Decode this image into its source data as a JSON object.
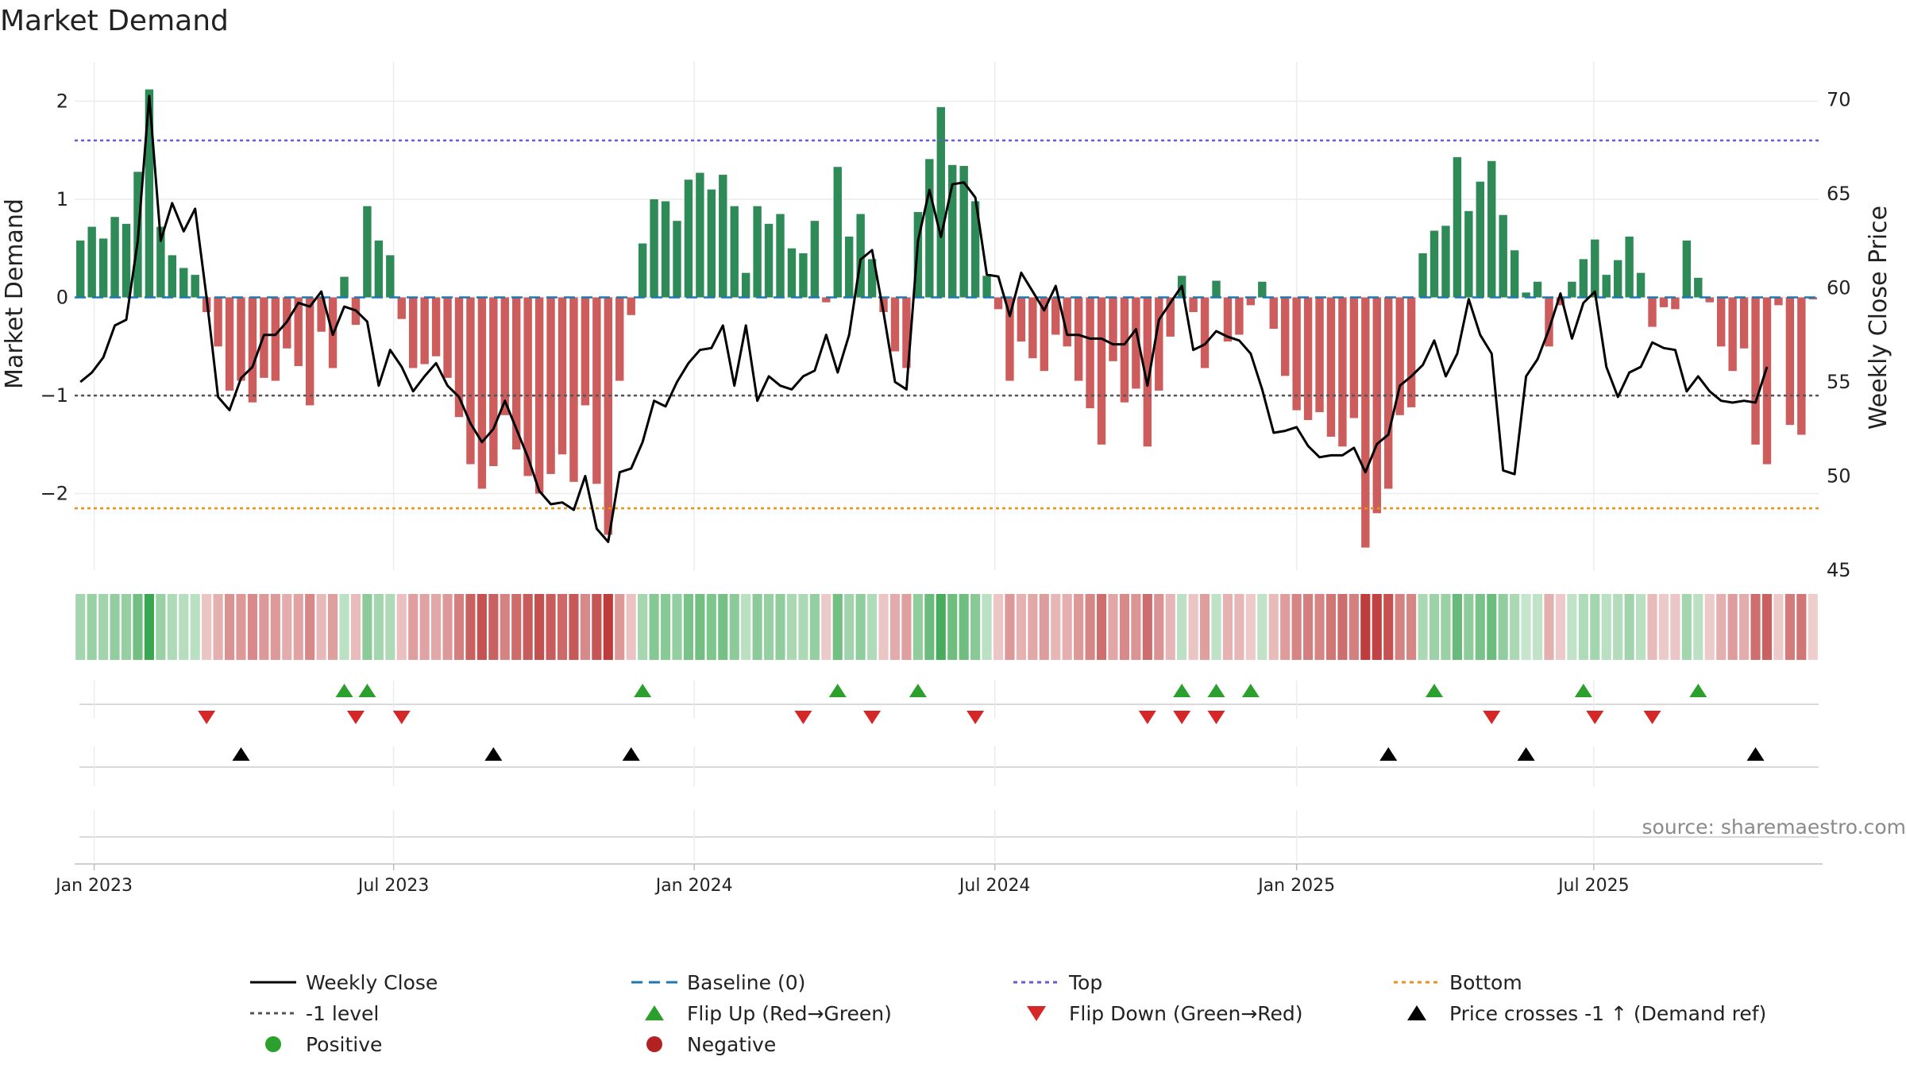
{
  "chart_data": {
    "type": "bar+line",
    "title": "Market Demand",
    "ylabel_left": "Market Demand",
    "ylabel_right": "Weekly Close Price",
    "source": "source: sharemaestro.com",
    "left_ylim": [
      -2.78,
      2.4
    ],
    "left_ticks": [
      2,
      1,
      0,
      -1,
      -2
    ],
    "left_tick_labels": [
      "2",
      "1",
      "0",
      "−1",
      "−2"
    ],
    "right_ylim": [
      45,
      72
    ],
    "right_ticks": [
      45,
      50,
      55,
      60,
      65,
      70
    ],
    "right_tick_labels": [
      "45",
      "50",
      "55",
      "60",
      "65",
      "70"
    ],
    "x_ticks": [
      "Jan 2023",
      "Jul 2023",
      "Jan 2024",
      "Jul 2024",
      "Jan 2025",
      "Jul 2025"
    ],
    "reference_lines": {
      "top": 1.6,
      "bottom": -2.15,
      "minus_one": -1,
      "baseline": 0
    },
    "colors": {
      "positive": "#2e8b57",
      "negative": "#cd5c5c",
      "close": "#000000",
      "top": "#6a5acd",
      "bottom": "#e8901e",
      "minus_one": "#555555",
      "baseline": "#1f77b4",
      "flip_up": "#2ca02c",
      "flip_down": "#d62728",
      "marker": "#000000"
    },
    "demand_values": [
      0.58,
      0.72,
      0.6,
      0.82,
      0.75,
      1.28,
      2.12,
      0.72,
      0.43,
      0.3,
      0.23,
      -0.15,
      -0.5,
      -0.95,
      -0.85,
      -1.07,
      -0.82,
      -0.85,
      -0.52,
      -0.7,
      -1.1,
      -0.35,
      -0.72,
      0.21,
      -0.28,
      0.93,
      0.58,
      0.43,
      -0.22,
      -0.72,
      -0.68,
      -0.6,
      -0.82,
      -1.22,
      -1.7,
      -1.95,
      -1.72,
      -1.2,
      -1.55,
      -1.82,
      -2.0,
      -1.8,
      -1.6,
      -1.88,
      -1.1,
      -1.9,
      -2.42,
      -0.85,
      -0.18,
      0.55,
      1.0,
      0.98,
      0.78,
      1.2,
      1.27,
      1.1,
      1.25,
      0.93,
      0.25,
      0.93,
      0.75,
      0.85,
      0.5,
      0.45,
      0.78,
      -0.05,
      1.33,
      0.62,
      0.85,
      0.39,
      -0.15,
      -0.55,
      -0.72,
      0.87,
      1.41,
      1.94,
      1.35,
      1.34,
      0.98,
      0.22,
      -0.12,
      -0.85,
      -0.45,
      -0.62,
      -0.75,
      -0.38,
      -0.5,
      -0.85,
      -1.13,
      -1.5,
      -0.65,
      -1.07,
      -0.93,
      -1.52,
      -0.95,
      -0.4,
      0.22,
      -0.15,
      -0.72,
      0.17,
      -0.45,
      -0.38,
      -0.08,
      0.16,
      -0.32,
      -0.8,
      -1.15,
      -1.25,
      -1.17,
      -1.42,
      -1.52,
      -1.23,
      -2.55,
      -2.2,
      -1.95,
      -1.2,
      -1.12,
      0.45,
      0.68,
      0.73,
      1.43,
      0.88,
      1.18,
      1.39,
      0.84,
      0.48,
      0.05,
      0.16,
      -0.5,
      -0.08,
      0.16,
      0.39,
      0.59,
      0.23,
      0.38,
      0.62,
      0.25,
      -0.3,
      -0.1,
      -0.12,
      0.58,
      0.2,
      -0.05,
      -0.5,
      -0.75,
      -0.52,
      -1.5,
      -1.7,
      -0.08,
      -1.3,
      -1.4,
      -0.02
    ],
    "close_values": [
      55.0,
      55.5,
      56.3,
      58.0,
      58.3,
      62.5,
      70.2,
      62.5,
      64.5,
      63.0,
      64.2,
      59.5,
      54.2,
      53.5,
      55.2,
      55.8,
      57.5,
      57.5,
      58.2,
      59.2,
      59.0,
      59.8,
      57.5,
      59.0,
      58.8,
      58.2,
      54.8,
      56.7,
      55.8,
      54.5,
      55.3,
      56.0,
      54.8,
      54.2,
      52.8,
      51.8,
      52.5,
      54.0,
      52.5,
      51.0,
      49.2,
      48.5,
      48.6,
      48.2,
      50.0,
      47.2,
      46.5,
      50.2,
      50.4,
      51.8,
      54.0,
      53.7,
      55.0,
      56.0,
      56.7,
      56.8,
      58.0,
      54.8,
      58.0,
      54.0,
      55.3,
      54.8,
      54.6,
      55.3,
      55.6,
      57.5,
      55.5,
      57.5,
      61.5,
      62.0,
      58.7,
      55.0,
      54.6,
      62.5,
      65.2,
      62.7,
      65.5,
      65.6,
      64.8,
      60.7,
      60.6,
      58.5,
      60.8,
      59.8,
      58.8,
      60.1,
      57.5,
      57.5,
      57.3,
      57.3,
      57.0,
      57.0,
      57.8,
      54.8,
      58.3,
      59.2,
      60.1,
      56.7,
      57.0,
      57.7,
      57.4,
      57.2,
      56.5,
      54.6,
      52.3,
      52.4,
      52.6,
      51.6,
      51.0,
      51.1,
      51.1,
      51.5,
      50.2,
      51.7,
      52.2,
      54.8,
      55.3,
      55.9,
      57.2,
      55.3,
      56.5,
      59.4,
      57.5,
      56.5,
      50.3,
      50.1,
      55.3,
      56.2,
      57.8,
      59.7,
      57.3,
      59.2,
      59.8,
      55.8,
      54.2,
      55.5,
      55.8,
      57.1,
      56.8,
      56.7,
      54.5,
      55.3,
      54.5,
      54.0,
      53.9,
      54.0,
      53.9,
      55.8
    ],
    "flip_up_idx": [
      23,
      25,
      49,
      66,
      73,
      96,
      99,
      102,
      118,
      131,
      141
    ],
    "flip_down_idx": [
      11,
      24,
      28,
      63,
      69,
      78,
      93,
      96,
      99,
      123,
      132,
      137
    ],
    "cross_idx": [
      14,
      36,
      48,
      114,
      126,
      146
    ],
    "legend": [
      {
        "label": "Weekly Close",
        "kind": "line",
        "color": "#000000"
      },
      {
        "label": "Baseline (0)",
        "kind": "dash",
        "color": "#1f77b4"
      },
      {
        "label": "Top",
        "kind": "dot",
        "color": "#6a5acd"
      },
      {
        "label": "Bottom",
        "kind": "dot",
        "color": "#e8901e"
      },
      {
        "label": "-1 level",
        "kind": "dot",
        "color": "#555555"
      },
      {
        "label": "Flip Up (Red→Green)",
        "kind": "tri-up",
        "color": "#2ca02c"
      },
      {
        "label": "Flip Down (Green→Red)",
        "kind": "tri-down",
        "color": "#d62728"
      },
      {
        "label": "Price crosses -1 ↑ (Demand ref)",
        "kind": "tri-up",
        "color": "#000000"
      },
      {
        "label": "Positive",
        "kind": "circle",
        "color": "#2ca02c"
      },
      {
        "label": "Negative",
        "kind": "circle",
        "color": "#b22222"
      }
    ]
  }
}
